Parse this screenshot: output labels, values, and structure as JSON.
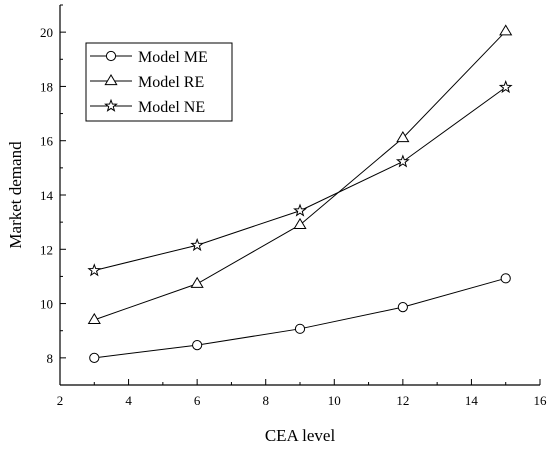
{
  "chart_data": {
    "type": "line",
    "title": "",
    "xlabel": "CEA level",
    "ylabel": "Market demand",
    "x": [
      3,
      6,
      9,
      12,
      15
    ],
    "xlim": [
      2,
      16
    ],
    "ylim": [
      7,
      21
    ],
    "xticks": [
      2,
      4,
      6,
      8,
      10,
      12,
      14,
      16
    ],
    "yticks": [
      8,
      10,
      12,
      14,
      16,
      18,
      20
    ],
    "grid": false,
    "legend_position": "top-left",
    "series": [
      {
        "name": "Model ME",
        "marker": "circle",
        "values": [
          8.0,
          8.47,
          9.07,
          9.87,
          10.93
        ]
      },
      {
        "name": "Model RE",
        "marker": "triangle",
        "values": [
          9.4,
          10.73,
          12.9,
          16.1,
          20.03
        ]
      },
      {
        "name": "Model NE",
        "marker": "star",
        "values": [
          11.22,
          12.15,
          13.42,
          15.23,
          17.97
        ]
      }
    ]
  }
}
